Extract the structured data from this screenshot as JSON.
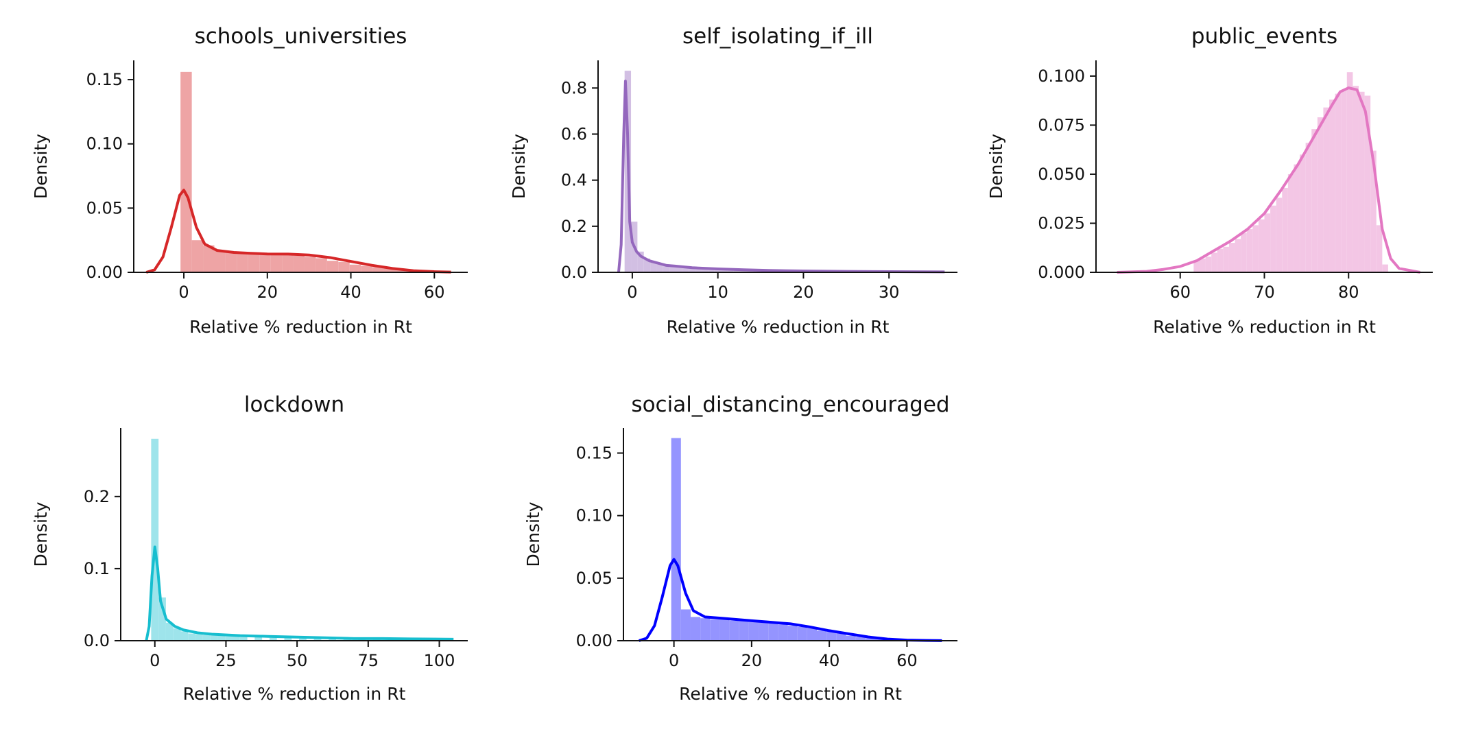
{
  "chart_data": [
    {
      "type": "histogram+kde",
      "title": "schools_universities",
      "xlabel": "Relative % reduction in Rt",
      "ylabel": "Density",
      "xlim": [
        -12,
        68
      ],
      "ylim": [
        0,
        0.165
      ],
      "xticks": [
        0,
        20,
        40,
        60
      ],
      "xtick_labels": [
        "0",
        "20",
        "40",
        "60"
      ],
      "yticks": [
        0,
        0.05,
        0.1,
        0.15
      ],
      "ytick_labels": [
        "0.00",
        "0.05",
        "0.10",
        "0.15"
      ],
      "color": "#d62728",
      "bin_width": 2.7,
      "bins": [
        [
          -0.8,
          0.156
        ],
        [
          1.9,
          0.025
        ],
        [
          4.6,
          0.021
        ],
        [
          7.3,
          0.017
        ],
        [
          10.0,
          0.016
        ],
        [
          12.7,
          0.015
        ],
        [
          15.4,
          0.015
        ],
        [
          18.1,
          0.014
        ],
        [
          20.8,
          0.014
        ],
        [
          23.5,
          0.014
        ],
        [
          26.2,
          0.013
        ],
        [
          28.9,
          0.012
        ],
        [
          31.6,
          0.011
        ],
        [
          34.3,
          0.009
        ],
        [
          37.0,
          0.008
        ],
        [
          39.7,
          0.006
        ],
        [
          42.4,
          0.005
        ],
        [
          45.1,
          0.004
        ],
        [
          47.8,
          0.003
        ],
        [
          50.5,
          0.002
        ],
        [
          53.2,
          0.0015
        ],
        [
          55.9,
          0.001
        ],
        [
          58.6,
          0.0007
        ],
        [
          61.3,
          0.0004
        ]
      ],
      "kde": [
        [
          -9,
          0.0
        ],
        [
          -7,
          0.002
        ],
        [
          -5,
          0.012
        ],
        [
          -3,
          0.035
        ],
        [
          -1,
          0.06
        ],
        [
          0,
          0.064
        ],
        [
          1,
          0.058
        ],
        [
          3,
          0.035
        ],
        [
          5,
          0.022
        ],
        [
          8,
          0.017
        ],
        [
          12,
          0.0155
        ],
        [
          16,
          0.0148
        ],
        [
          20,
          0.0143
        ],
        [
          25,
          0.0142
        ],
        [
          30,
          0.0135
        ],
        [
          35,
          0.0115
        ],
        [
          40,
          0.0085
        ],
        [
          45,
          0.0055
        ],
        [
          50,
          0.003
        ],
        [
          55,
          0.0013
        ],
        [
          60,
          0.0005
        ],
        [
          64,
          0.0002
        ]
      ]
    },
    {
      "type": "histogram+kde",
      "title": "self_isolating_if_ill",
      "xlabel": "Relative % reduction in Rt",
      "ylabel": "Density",
      "xlim": [
        -4,
        38
      ],
      "ylim": [
        0,
        0.92
      ],
      "xticks": [
        0,
        10,
        20,
        30
      ],
      "xtick_labels": [
        "0",
        "10",
        "20",
        "30"
      ],
      "yticks": [
        0,
        0.2,
        0.4,
        0.6,
        0.8
      ],
      "ytick_labels": [
        "0.0",
        "0.2",
        "0.4",
        "0.6",
        "0.8"
      ],
      "color": "#9467bd",
      "bin_width": 0.75,
      "bins": [
        [
          -0.9,
          0.875
        ],
        [
          -0.15,
          0.22
        ],
        [
          0.6,
          0.09
        ],
        [
          1.35,
          0.06
        ],
        [
          2.1,
          0.045
        ],
        [
          2.85,
          0.04
        ],
        [
          3.6,
          0.035
        ],
        [
          4.35,
          0.03
        ],
        [
          5.1,
          0.025
        ],
        [
          5.85,
          0.022
        ],
        [
          6.6,
          0.02
        ],
        [
          7.35,
          0.017
        ],
        [
          8.1,
          0.015
        ],
        [
          8.85,
          0.014
        ],
        [
          9.6,
          0.012
        ],
        [
          10.35,
          0.011
        ],
        [
          11.1,
          0.01
        ],
        [
          11.85,
          0.009
        ],
        [
          12.6,
          0.008
        ],
        [
          13.35,
          0.007
        ],
        [
          14.1,
          0.007
        ],
        [
          14.85,
          0.006
        ],
        [
          15.6,
          0.006
        ],
        [
          16.35,
          0.005
        ],
        [
          17.1,
          0.005
        ],
        [
          18.6,
          0.004
        ],
        [
          20.1,
          0.004
        ],
        [
          21.6,
          0.003
        ],
        [
          23.1,
          0.003
        ],
        [
          25.1,
          0.002
        ],
        [
          28.1,
          0.002
        ],
        [
          32.1,
          0.001
        ]
      ],
      "kde": [
        [
          -1.6,
          0.0
        ],
        [
          -1.3,
          0.12
        ],
        [
          -1.0,
          0.6
        ],
        [
          -0.8,
          0.83
        ],
        [
          -0.55,
          0.6
        ],
        [
          -0.3,
          0.22
        ],
        [
          0.0,
          0.13
        ],
        [
          0.5,
          0.09
        ],
        [
          1,
          0.07
        ],
        [
          2,
          0.05
        ],
        [
          3,
          0.04
        ],
        [
          4,
          0.03
        ],
        [
          5,
          0.027
        ],
        [
          7,
          0.02
        ],
        [
          10,
          0.015
        ],
        [
          13,
          0.011
        ],
        [
          16,
          0.008
        ],
        [
          20,
          0.006
        ],
        [
          25,
          0.004
        ],
        [
          30,
          0.003
        ],
        [
          36.5,
          0.002
        ]
      ]
    },
    {
      "type": "histogram+kde",
      "title": "public_events",
      "xlabel": "Relative % reduction in Rt",
      "ylabel": "Density",
      "xlim": [
        50,
        90
      ],
      "ylim": [
        0,
        0.108
      ],
      "xticks": [
        60,
        70,
        80
      ],
      "xtick_labels": [
        "60",
        "70",
        "80"
      ],
      "yticks": [
        0,
        0.025,
        0.05,
        0.075,
        0.1
      ],
      "ytick_labels": [
        "0.000",
        "0.025",
        "0.050",
        "0.075",
        "0.100"
      ],
      "color": "#e377c2",
      "bin_width": 0.7,
      "bins": [
        [
          61.6,
          0.006
        ],
        [
          62.3,
          0.007
        ],
        [
          63.0,
          0.008
        ],
        [
          63.7,
          0.01
        ],
        [
          64.4,
          0.012
        ],
        [
          65.1,
          0.013
        ],
        [
          65.8,
          0.015
        ],
        [
          66.5,
          0.017
        ],
        [
          67.2,
          0.02
        ],
        [
          67.9,
          0.022
        ],
        [
          68.6,
          0.024
        ],
        [
          69.3,
          0.027
        ],
        [
          70.0,
          0.03
        ],
        [
          70.7,
          0.034
        ],
        [
          71.4,
          0.038
        ],
        [
          72.1,
          0.043
        ],
        [
          72.8,
          0.05
        ],
        [
          73.5,
          0.055
        ],
        [
          74.2,
          0.06
        ],
        [
          74.9,
          0.066
        ],
        [
          75.6,
          0.073
        ],
        [
          76.3,
          0.079
        ],
        [
          77.0,
          0.084
        ],
        [
          77.7,
          0.088
        ],
        [
          78.4,
          0.091
        ],
        [
          79.1,
          0.093
        ],
        [
          79.8,
          0.102
        ],
        [
          80.5,
          0.095
        ],
        [
          81.2,
          0.092
        ],
        [
          81.9,
          0.09
        ],
        [
          82.6,
          0.062
        ],
        [
          83.3,
          0.024
        ],
        [
          84.0,
          0.004
        ]
      ],
      "kde": [
        [
          52.5,
          0.0
        ],
        [
          56,
          0.0005
        ],
        [
          58,
          0.0015
        ],
        [
          60,
          0.003
        ],
        [
          62,
          0.006
        ],
        [
          64,
          0.011
        ],
        [
          66,
          0.016
        ],
        [
          68,
          0.022
        ],
        [
          70,
          0.03
        ],
        [
          72,
          0.042
        ],
        [
          74,
          0.055
        ],
        [
          76,
          0.07
        ],
        [
          78,
          0.085
        ],
        [
          79,
          0.092
        ],
        [
          80,
          0.094
        ],
        [
          81,
          0.093
        ],
        [
          82,
          0.082
        ],
        [
          83,
          0.055
        ],
        [
          84,
          0.022
        ],
        [
          85,
          0.007
        ],
        [
          86,
          0.002
        ],
        [
          88.5,
          0.0
        ]
      ]
    },
    {
      "type": "histogram+kde",
      "title": "lockdown",
      "xlabel": "Relative % reduction in Rt",
      "ylabel": "Density",
      "xlim": [
        -12,
        110
      ],
      "ylim": [
        0,
        0.295
      ],
      "xticks": [
        0,
        25,
        50,
        75,
        100
      ],
      "xtick_labels": [
        "0",
        "25",
        "50",
        "75",
        "100"
      ],
      "yticks": [
        0,
        0.1,
        0.2
      ],
      "ytick_labels": [
        "0.0",
        "0.1",
        "0.2"
      ],
      "color": "#17becf",
      "bin_width": 2.6,
      "bins": [
        [
          -1.3,
          0.28
        ],
        [
          1.3,
          0.06
        ],
        [
          3.9,
          0.025
        ],
        [
          6.5,
          0.017
        ],
        [
          9.1,
          0.013
        ],
        [
          11.7,
          0.01
        ],
        [
          14.3,
          0.009
        ],
        [
          16.9,
          0.008
        ],
        [
          19.5,
          0.007
        ],
        [
          22.1,
          0.007
        ],
        [
          24.7,
          0.006
        ],
        [
          27.3,
          0.006
        ],
        [
          29.9,
          0.005
        ],
        [
          35.1,
          0.005
        ],
        [
          40.3,
          0.004
        ],
        [
          45.5,
          0.004
        ],
        [
          50.7,
          0.003
        ],
        [
          55.9,
          0.003
        ],
        [
          61.1,
          0.003
        ],
        [
          66.3,
          0.003
        ],
        [
          71.5,
          0.002
        ],
        [
          76.7,
          0.002
        ],
        [
          81.9,
          0.002
        ],
        [
          87.1,
          0.002
        ],
        [
          92.3,
          0.002
        ],
        [
          97.5,
          0.001
        ],
        [
          102.7,
          0.001
        ]
      ],
      "kde": [
        [
          -3,
          0.0
        ],
        [
          -2,
          0.02
        ],
        [
          -1,
          0.09
        ],
        [
          0,
          0.13
        ],
        [
          1,
          0.1
        ],
        [
          2,
          0.055
        ],
        [
          4,
          0.03
        ],
        [
          7,
          0.02
        ],
        [
          10,
          0.015
        ],
        [
          15,
          0.011
        ],
        [
          20,
          0.009
        ],
        [
          30,
          0.007
        ],
        [
          40,
          0.006
        ],
        [
          50,
          0.005
        ],
        [
          60,
          0.004
        ],
        [
          70,
          0.003
        ],
        [
          80,
          0.003
        ],
        [
          90,
          0.0025
        ],
        [
          105,
          0.002
        ]
      ]
    },
    {
      "type": "histogram+kde",
      "title": "social_distancing_encouraged",
      "xlabel": "Relative % reduction in Rt",
      "ylabel": "Density",
      "xlim": [
        -13,
        73
      ],
      "ylim": [
        0,
        0.17
      ],
      "xticks": [
        0,
        20,
        40,
        60
      ],
      "xtick_labels": [
        "0",
        "20",
        "40",
        "60"
      ],
      "yticks": [
        0,
        0.05,
        0.1,
        0.15
      ],
      "ytick_labels": [
        "0.00",
        "0.05",
        "0.10",
        "0.15"
      ],
      "color": "#0000ff",
      "bin_width": 2.5,
      "bins": [
        [
          -0.7,
          0.162
        ],
        [
          1.8,
          0.025
        ],
        [
          4.3,
          0.019
        ],
        [
          6.8,
          0.018
        ],
        [
          9.3,
          0.017
        ],
        [
          11.8,
          0.017
        ],
        [
          14.3,
          0.016
        ],
        [
          16.8,
          0.016
        ],
        [
          19.3,
          0.015
        ],
        [
          21.8,
          0.015
        ],
        [
          24.3,
          0.014
        ],
        [
          26.8,
          0.013
        ],
        [
          29.3,
          0.012
        ],
        [
          31.8,
          0.011
        ],
        [
          34.3,
          0.01
        ],
        [
          36.8,
          0.008
        ],
        [
          39.3,
          0.007
        ],
        [
          41.8,
          0.006
        ],
        [
          44.3,
          0.004
        ],
        [
          46.8,
          0.003
        ],
        [
          49.3,
          0.002
        ],
        [
          51.8,
          0.0015
        ],
        [
          54.3,
          0.001
        ],
        [
          56.8,
          0.0007
        ],
        [
          59.3,
          0.0004
        ]
      ],
      "kde": [
        [
          -9,
          0.0
        ],
        [
          -7,
          0.002
        ],
        [
          -5,
          0.012
        ],
        [
          -3,
          0.035
        ],
        [
          -1,
          0.06
        ],
        [
          0,
          0.065
        ],
        [
          1,
          0.06
        ],
        [
          3,
          0.038
        ],
        [
          5,
          0.024
        ],
        [
          8,
          0.019
        ],
        [
          12,
          0.018
        ],
        [
          16,
          0.017
        ],
        [
          20,
          0.016
        ],
        [
          24,
          0.015
        ],
        [
          30,
          0.0135
        ],
        [
          35,
          0.011
        ],
        [
          40,
          0.008
        ],
        [
          45,
          0.0055
        ],
        [
          50,
          0.003
        ],
        [
          55,
          0.0013
        ],
        [
          60,
          0.0005
        ],
        [
          65,
          0.0002
        ],
        [
          69,
          0.0001
        ]
      ]
    }
  ]
}
